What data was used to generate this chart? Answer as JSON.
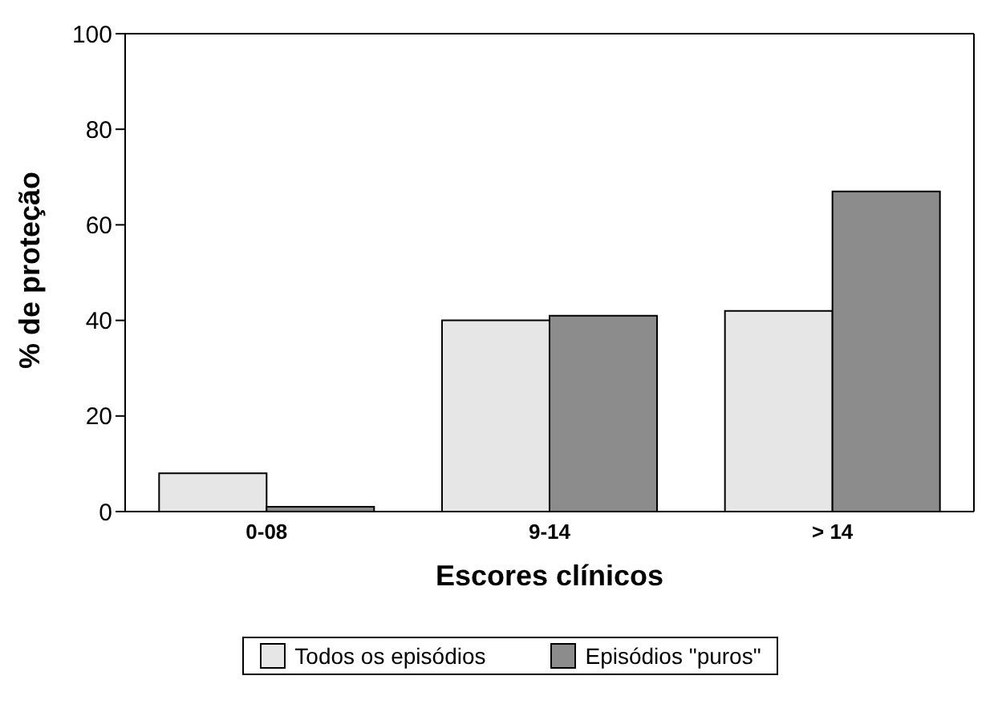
{
  "chart_data": {
    "type": "bar",
    "xlabel": "Escores clínicos",
    "ylabel": "% de proteção",
    "categories": [
      "0-08",
      "9-14",
      "> 14"
    ],
    "series": [
      {
        "name": "Todos os episódios",
        "color": "#e6e6e6",
        "values": [
          8,
          40,
          42
        ]
      },
      {
        "name": "Episódios \"puros\"",
        "color": "#8c8c8c",
        "values": [
          1,
          41,
          67
        ]
      }
    ],
    "ylim": [
      0,
      100
    ],
    "yticks": [
      0,
      20,
      40,
      60,
      80,
      100
    ],
    "legend": "bottom"
  }
}
